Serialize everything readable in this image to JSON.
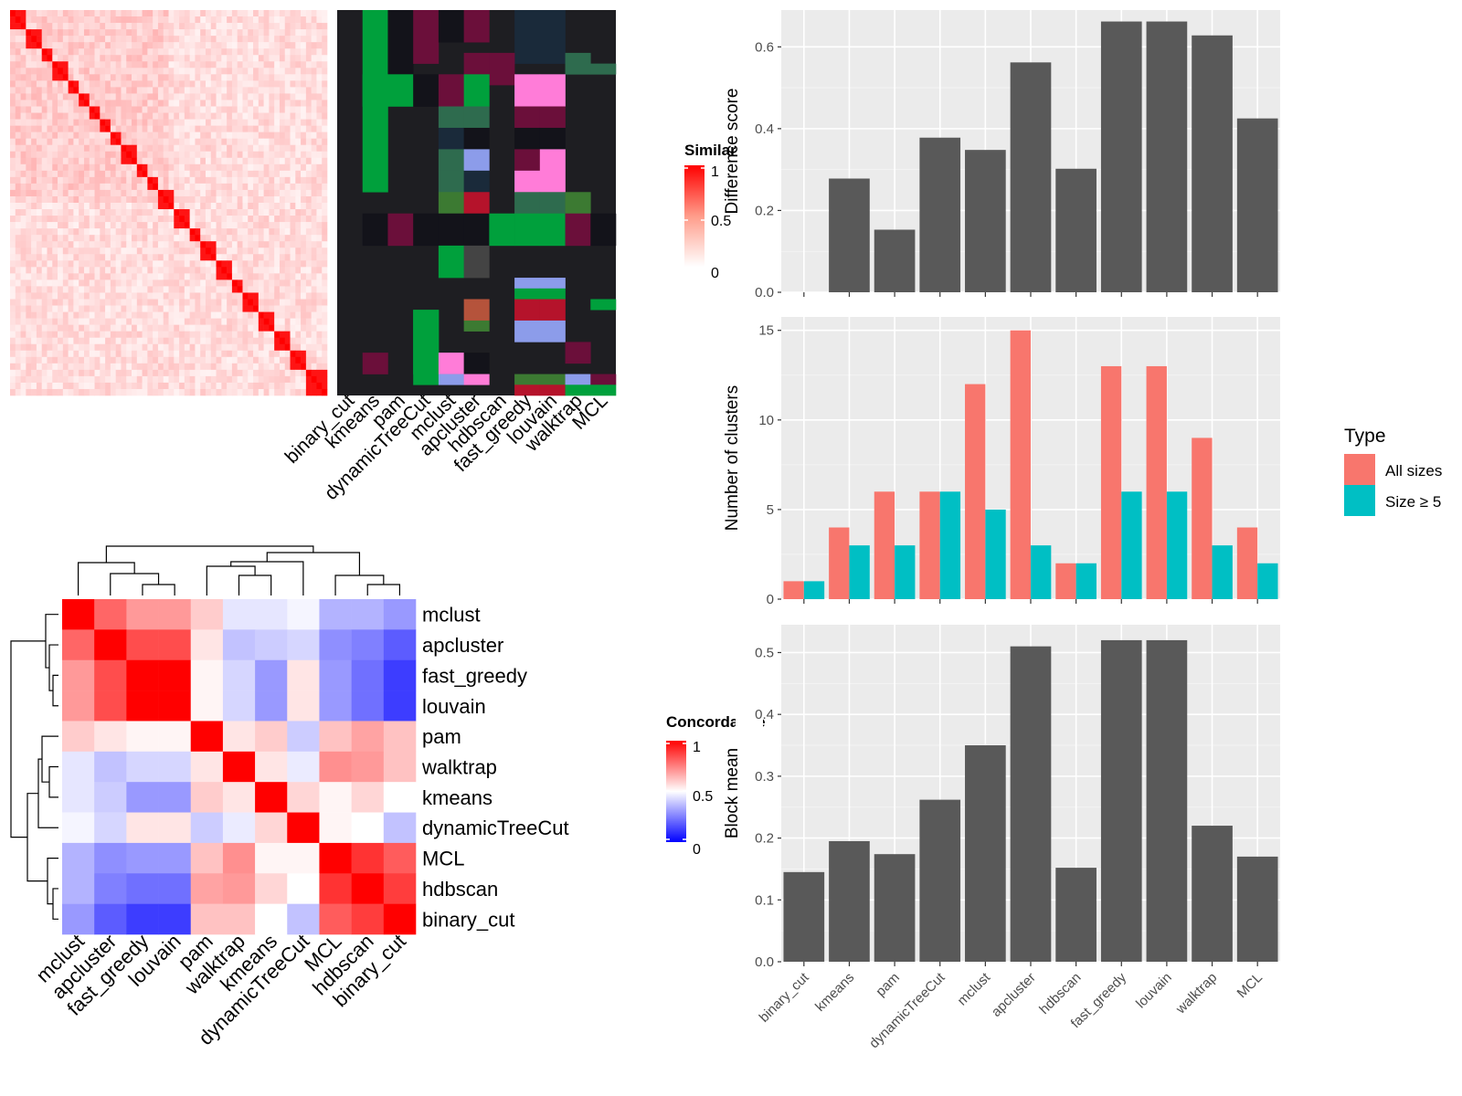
{
  "methods": [
    "binary_cut",
    "kmeans",
    "pam",
    "dynamicTreeCut",
    "mclust",
    "apcluster",
    "hdbscan",
    "fast_greedy",
    "louvain",
    "walktrap",
    "MCL"
  ],
  "similarity_legend": {
    "title": "Similarity",
    "ticks": [
      "1",
      "0.5",
      "0"
    ]
  },
  "concordance_legend": {
    "title": "Concordance",
    "ticks": [
      "1",
      "0.5",
      "0"
    ]
  },
  "concordance_order": [
    "mclust",
    "apcluster",
    "fast_greedy",
    "louvain",
    "pam",
    "walktrap",
    "kmeans",
    "dynamicTreeCut",
    "MCL",
    "hdbscan",
    "binary_cut"
  ],
  "concordance_matrix": [
    [
      1.0,
      0.8,
      0.7,
      0.7,
      0.6,
      0.45,
      0.45,
      0.48,
      0.35,
      0.35,
      0.3
    ],
    [
      0.8,
      1.0,
      0.85,
      0.85,
      0.55,
      0.38,
      0.4,
      0.42,
      0.28,
      0.25,
      0.18
    ],
    [
      0.7,
      0.85,
      1.0,
      1.0,
      0.52,
      0.42,
      0.3,
      0.55,
      0.3,
      0.22,
      0.12
    ],
    [
      0.7,
      0.85,
      1.0,
      1.0,
      0.52,
      0.42,
      0.3,
      0.55,
      0.3,
      0.22,
      0.12
    ],
    [
      0.6,
      0.55,
      0.52,
      0.52,
      1.0,
      0.55,
      0.6,
      0.4,
      0.62,
      0.68,
      0.62
    ],
    [
      0.45,
      0.38,
      0.42,
      0.42,
      0.55,
      1.0,
      0.55,
      0.46,
      0.72,
      0.7,
      0.62
    ],
    [
      0.45,
      0.4,
      0.3,
      0.3,
      0.6,
      0.55,
      1.0,
      0.58,
      0.52,
      0.58,
      0.5
    ],
    [
      0.48,
      0.42,
      0.55,
      0.55,
      0.4,
      0.46,
      0.58,
      1.0,
      0.52,
      0.5,
      0.38
    ],
    [
      0.35,
      0.28,
      0.3,
      0.3,
      0.62,
      0.72,
      0.52,
      0.52,
      1.0,
      0.9,
      0.82
    ],
    [
      0.35,
      0.25,
      0.22,
      0.22,
      0.68,
      0.7,
      0.58,
      0.5,
      0.9,
      1.0,
      0.88
    ],
    [
      0.3,
      0.18,
      0.12,
      0.12,
      0.62,
      0.62,
      0.5,
      0.38,
      0.82,
      0.88,
      1.0
    ]
  ],
  "chart_data": [
    {
      "type": "bar",
      "categories": [
        "binary_cut",
        "kmeans",
        "pam",
        "dynamicTreeCut",
        "mclust",
        "apcluster",
        "hdbscan",
        "fast_greedy",
        "louvain",
        "walktrap",
        "MCL"
      ],
      "values": [
        0,
        0.278,
        0.153,
        0.378,
        0.348,
        0.562,
        0.302,
        0.662,
        0.662,
        0.628,
        0.425
      ],
      "title": "",
      "xlabel": "",
      "ylabel": "Difference score",
      "ylim": [
        0,
        0.69
      ],
      "yticks": [
        0.0,
        0.2,
        0.4,
        0.6
      ],
      "ytick_labels": [
        "0.0",
        "0.2",
        "0.4",
        "0.6"
      ],
      "bar_color": "#595959",
      "grid": true
    },
    {
      "type": "bar",
      "categories": [
        "binary_cut",
        "kmeans",
        "pam",
        "dynamicTreeCut",
        "mclust",
        "apcluster",
        "hdbscan",
        "fast_greedy",
        "louvain",
        "walktrap",
        "MCL"
      ],
      "series": [
        {
          "name": "All sizes",
          "values": [
            1,
            4,
            6,
            6,
            12,
            15,
            2,
            13,
            13,
            9,
            4
          ],
          "color": "#F8766D"
        },
        {
          "name": "Size ≥ 5",
          "values": [
            1,
            3,
            3,
            6,
            5,
            3,
            2,
            6,
            6,
            3,
            2
          ],
          "color": "#00BFC4"
        }
      ],
      "title": "",
      "xlabel": "",
      "ylabel": "Number of clusters",
      "ylim": [
        0,
        15.75
      ],
      "yticks": [
        0,
        5,
        10,
        15
      ],
      "ytick_labels": [
        "0",
        "5",
        "10",
        "15"
      ],
      "legend": {
        "title": "Type",
        "position": "right"
      },
      "grid": true
    },
    {
      "type": "bar",
      "categories": [
        "binary_cut",
        "kmeans",
        "pam",
        "dynamicTreeCut",
        "mclust",
        "apcluster",
        "hdbscan",
        "fast_greedy",
        "louvain",
        "walktrap",
        "MCL"
      ],
      "values": [
        0.145,
        0.195,
        0.174,
        0.262,
        0.35,
        0.51,
        0.152,
        0.52,
        0.52,
        0.22,
        0.17
      ],
      "title": "",
      "xlabel": "",
      "ylabel": "Block mean",
      "ylim": [
        0,
        0.545
      ],
      "yticks": [
        0.0,
        0.1,
        0.2,
        0.3,
        0.4,
        0.5
      ],
      "ytick_labels": [
        "0.0",
        "0.1",
        "0.2",
        "0.3",
        "0.4",
        "0.5"
      ],
      "bar_color": "#595959",
      "grid": true
    }
  ],
  "colors": {
    "panel_bg": "#EBEBEB",
    "grid": "#FFFFFF",
    "heat_high": "#FF0000",
    "heat_low": "#FFFFFF",
    "conc_low": "#0000FF",
    "conc_mid": "#FFFFFF",
    "conc_high": "#FF0000",
    "cluster_palette": [
      "#00A03C",
      "#FF7CD8",
      "#8C9CEA",
      "#B5132B",
      "#2E6B4E",
      "#3C7A32",
      "#6B0F3A",
      "#1A2A3A",
      "#13131A",
      "#444444"
    ]
  }
}
